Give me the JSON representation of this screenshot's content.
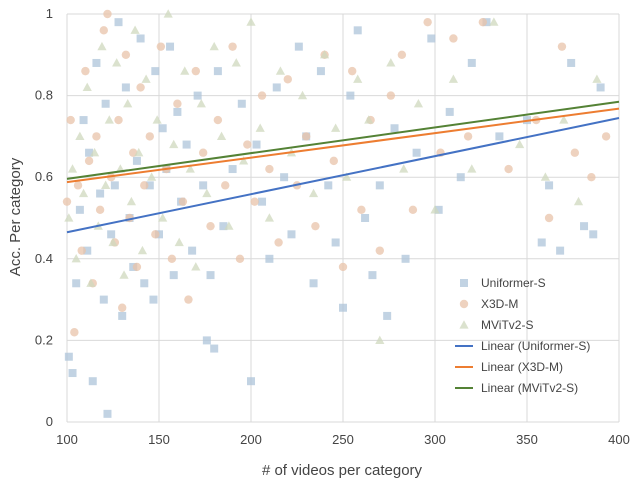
{
  "chart_data": {
    "type": "scatter",
    "xlabel": "# of videos per category",
    "ylabel": "Acc. Per category",
    "xlim": [
      100,
      400
    ],
    "ylim": [
      0,
      1
    ],
    "x_ticks": [
      "100",
      "150",
      "200",
      "250",
      "300",
      "350",
      "400"
    ],
    "y_ticks": [
      "0",
      "0.2",
      "0.4",
      "0.6",
      "0.8",
      "1"
    ],
    "grid": true,
    "legend_position": "bottom-right",
    "series": [
      {
        "name": "Uniformer-S",
        "marker": "square",
        "color": "#adc4d9",
        "points": [
          [
            101,
            0.16
          ],
          [
            103,
            0.12
          ],
          [
            105,
            0.34
          ],
          [
            107,
            0.52
          ],
          [
            109,
            0.74
          ],
          [
            111,
            0.42
          ],
          [
            112,
            0.66
          ],
          [
            114,
            0.1
          ],
          [
            116,
            0.88
          ],
          [
            118,
            0.56
          ],
          [
            120,
            0.3
          ],
          [
            121,
            0.78
          ],
          [
            122,
            0.02
          ],
          [
            124,
            0.46
          ],
          [
            126,
            0.58
          ],
          [
            128,
            0.98
          ],
          [
            130,
            0.26
          ],
          [
            132,
            0.82
          ],
          [
            134,
            0.5
          ],
          [
            136,
            0.38
          ],
          [
            138,
            0.64
          ],
          [
            140,
            0.94
          ],
          [
            142,
            0.34
          ],
          [
            145,
            0.58
          ],
          [
            147,
            0.3
          ],
          [
            148,
            0.86
          ],
          [
            150,
            0.46
          ],
          [
            152,
            0.72
          ],
          [
            154,
            0.62
          ],
          [
            156,
            0.92
          ],
          [
            158,
            0.36
          ],
          [
            160,
            0.76
          ],
          [
            162,
            0.54
          ],
          [
            165,
            0.68
          ],
          [
            168,
            0.42
          ],
          [
            171,
            0.8
          ],
          [
            174,
            0.58
          ],
          [
            176,
            0.2
          ],
          [
            178,
            0.36
          ],
          [
            180,
            0.18
          ],
          [
            182,
            0.86
          ],
          [
            185,
            0.48
          ],
          [
            190,
            0.62
          ],
          [
            195,
            0.78
          ],
          [
            200,
            0.1
          ],
          [
            203,
            0.68
          ],
          [
            206,
            0.54
          ],
          [
            210,
            0.4
          ],
          [
            214,
            0.82
          ],
          [
            218,
            0.6
          ],
          [
            222,
            0.46
          ],
          [
            226,
            0.92
          ],
          [
            230,
            0.7
          ],
          [
            234,
            0.34
          ],
          [
            238,
            0.86
          ],
          [
            242,
            0.58
          ],
          [
            246,
            0.44
          ],
          [
            250,
            0.28
          ],
          [
            254,
            0.8
          ],
          [
            258,
            0.96
          ],
          [
            262,
            0.5
          ],
          [
            266,
            0.36
          ],
          [
            270,
            0.58
          ],
          [
            274,
            0.26
          ],
          [
            278,
            0.72
          ],
          [
            284,
            0.4
          ],
          [
            290,
            0.66
          ],
          [
            298,
            0.94
          ],
          [
            302,
            0.52
          ],
          [
            308,
            0.76
          ],
          [
            314,
            0.6
          ],
          [
            320,
            0.88
          ],
          [
            328,
            0.98
          ],
          [
            335,
            0.7
          ],
          [
            350,
            0.74
          ],
          [
            358,
            0.44
          ],
          [
            362,
            0.58
          ],
          [
            368,
            0.42
          ],
          [
            374,
            0.88
          ],
          [
            381,
            0.48
          ],
          [
            386,
            0.46
          ],
          [
            390,
            0.82
          ]
        ]
      },
      {
        "name": "X3D-M",
        "marker": "circle",
        "color": "#e8c3aa",
        "points": [
          [
            100,
            0.54
          ],
          [
            102,
            0.74
          ],
          [
            104,
            0.22
          ],
          [
            106,
            0.58
          ],
          [
            108,
            0.42
          ],
          [
            110,
            0.86
          ],
          [
            112,
            0.64
          ],
          [
            114,
            0.34
          ],
          [
            116,
            0.7
          ],
          [
            118,
            0.52
          ],
          [
            120,
            0.96
          ],
          [
            122,
            1.0
          ],
          [
            124,
            0.6
          ],
          [
            126,
            0.44
          ],
          [
            128,
            0.74
          ],
          [
            130,
            0.28
          ],
          [
            132,
            0.9
          ],
          [
            134,
            0.5
          ],
          [
            136,
            0.66
          ],
          [
            138,
            0.38
          ],
          [
            140,
            0.82
          ],
          [
            142,
            0.58
          ],
          [
            145,
            0.7
          ],
          [
            148,
            0.46
          ],
          [
            151,
            0.92
          ],
          [
            154,
            0.62
          ],
          [
            157,
            0.4
          ],
          [
            160,
            0.78
          ],
          [
            163,
            0.54
          ],
          [
            166,
            0.3
          ],
          [
            170,
            0.86
          ],
          [
            174,
            0.66
          ],
          [
            178,
            0.48
          ],
          [
            182,
            0.74
          ],
          [
            186,
            0.58
          ],
          [
            190,
            0.92
          ],
          [
            194,
            0.4
          ],
          [
            198,
            0.68
          ],
          [
            202,
            0.54
          ],
          [
            206,
            0.8
          ],
          [
            210,
            0.62
          ],
          [
            215,
            0.44
          ],
          [
            220,
            0.84
          ],
          [
            225,
            0.58
          ],
          [
            230,
            0.7
          ],
          [
            235,
            0.48
          ],
          [
            240,
            0.9
          ],
          [
            245,
            0.64
          ],
          [
            250,
            0.38
          ],
          [
            255,
            0.86
          ],
          [
            260,
            0.52
          ],
          [
            265,
            0.74
          ],
          [
            270,
            0.42
          ],
          [
            276,
            0.8
          ],
          [
            282,
            0.9
          ],
          [
            288,
            0.52
          ],
          [
            296,
            0.98
          ],
          [
            303,
            0.66
          ],
          [
            310,
            0.94
          ],
          [
            318,
            0.7
          ],
          [
            326,
            0.98
          ],
          [
            340,
            0.62
          ],
          [
            355,
            0.74
          ],
          [
            362,
            0.5
          ],
          [
            369,
            0.92
          ],
          [
            376,
            0.66
          ],
          [
            385,
            0.6
          ],
          [
            393,
            0.7
          ]
        ]
      },
      {
        "name": "MViTv2-S",
        "marker": "triangle",
        "color": "#cfd8bd",
        "points": [
          [
            101,
            0.5
          ],
          [
            103,
            0.62
          ],
          [
            105,
            0.4
          ],
          [
            107,
            0.7
          ],
          [
            109,
            0.56
          ],
          [
            111,
            0.82
          ],
          [
            113,
            0.34
          ],
          [
            115,
            0.66
          ],
          [
            117,
            0.48
          ],
          [
            119,
            0.92
          ],
          [
            121,
            0.58
          ],
          [
            123,
            0.74
          ],
          [
            125,
            0.44
          ],
          [
            127,
            0.88
          ],
          [
            129,
            0.62
          ],
          [
            131,
            0.36
          ],
          [
            133,
            0.78
          ],
          [
            135,
            0.54
          ],
          [
            137,
            0.96
          ],
          [
            139,
            0.66
          ],
          [
            141,
            0.42
          ],
          [
            143,
            0.84
          ],
          [
            146,
            0.6
          ],
          [
            149,
            0.74
          ],
          [
            152,
            0.5
          ],
          [
            155,
            1.0
          ],
          [
            158,
            0.68
          ],
          [
            161,
            0.44
          ],
          [
            164,
            0.86
          ],
          [
            167,
            0.62
          ],
          [
            170,
            0.38
          ],
          [
            173,
            0.78
          ],
          [
            176,
            0.56
          ],
          [
            180,
            0.92
          ],
          [
            184,
            0.7
          ],
          [
            188,
            0.48
          ],
          [
            192,
            0.88
          ],
          [
            196,
            0.64
          ],
          [
            200,
            0.98
          ],
          [
            205,
            0.72
          ],
          [
            210,
            0.5
          ],
          [
            216,
            0.86
          ],
          [
            222,
            0.66
          ],
          [
            228,
            0.8
          ],
          [
            234,
            0.56
          ],
          [
            240,
            0.9
          ],
          [
            246,
            0.72
          ],
          [
            252,
            0.6
          ],
          [
            258,
            0.84
          ],
          [
            264,
            0.74
          ],
          [
            270,
            0.2
          ],
          [
            276,
            0.88
          ],
          [
            283,
            0.62
          ],
          [
            291,
            0.78
          ],
          [
            300,
            0.52
          ],
          [
            310,
            0.84
          ],
          [
            320,
            0.62
          ],
          [
            332,
            0.98
          ],
          [
            346,
            0.68
          ],
          [
            360,
            0.6
          ],
          [
            370,
            0.74
          ],
          [
            378,
            0.54
          ],
          [
            388,
            0.84
          ]
        ]
      }
    ],
    "trendlines": [
      {
        "name": "Linear (Uniformer-S)",
        "color": "#4472c4",
        "x": [
          100,
          400
        ],
        "y": [
          0.465,
          0.745
        ]
      },
      {
        "name": "Linear (X3D-M)",
        "color": "#ed7d31",
        "x": [
          100,
          400
        ],
        "y": [
          0.588,
          0.768
        ]
      },
      {
        "name": "Linear (MViTv2-S)",
        "color": "#548235",
        "x": [
          100,
          400
        ],
        "y": [
          0.596,
          0.785
        ]
      }
    ]
  }
}
